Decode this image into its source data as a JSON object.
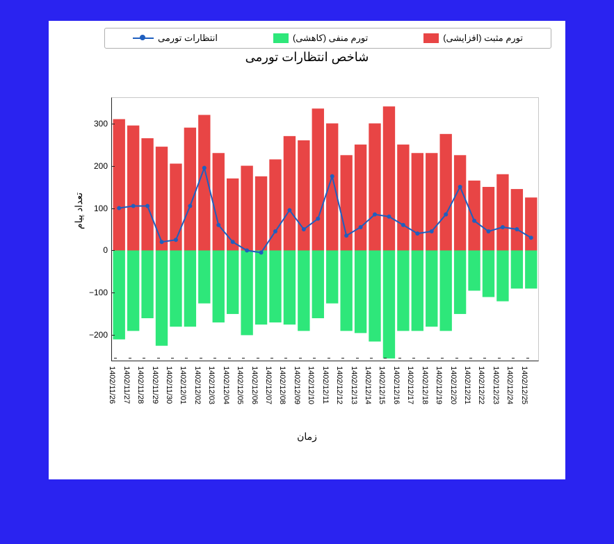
{
  "chart": {
    "type": "bar+line",
    "title": "شاخص انتظارات تورمی",
    "xlabel": "زمان",
    "ylabel": "تعداد پیام",
    "background_color": "#ffffff",
    "page_background": "#2a23f0",
    "axis_color": "#222222",
    "tick_fontsize": 12,
    "label_fontsize": 14,
    "title_fontsize": 18,
    "ylim": [
      -260,
      360
    ],
    "yticks": [
      -200,
      -100,
      0,
      100,
      200,
      300
    ],
    "bar_width": 0.85,
    "legend": {
      "items": [
        {
          "label": "تورم مثبت (افزایشی)",
          "kind": "swatch",
          "color": "#e84545"
        },
        {
          "label": "تورم منفی (کاهشی)",
          "kind": "swatch",
          "color": "#2ee77a"
        },
        {
          "label": "انتظارات تورمی",
          "kind": "line",
          "color": "#1f5fbf"
        }
      ]
    },
    "line_color": "#1f5fbf",
    "line_width": 2,
    "marker_size": 6,
    "pos_color": "#e84545",
    "neg_color": "#2ee77a",
    "categories": [
      "1402/11/26",
      "1402/11/27",
      "1402/11/28",
      "1402/11/29",
      "1402/11/30",
      "1402/12/01",
      "1402/12/02",
      "1402/12/03",
      "1402/12/04",
      "1402/12/05",
      "1402/12/06",
      "1402/12/07",
      "1402/12/08",
      "1402/12/09",
      "1402/12/10",
      "1402/12/11",
      "1402/12/12",
      "1402/12/13",
      "1402/12/14",
      "1402/12/15",
      "1402/12/16",
      "1402/12/17",
      "1402/12/18",
      "1402/12/19",
      "1402/12/20",
      "1402/12/21",
      "1402/12/22",
      "1402/12/23",
      "1402/12/24",
      "1402/12/25"
    ],
    "pos_values": [
      310,
      295,
      265,
      245,
      205,
      290,
      320,
      230,
      170,
      200,
      175,
      215,
      270,
      260,
      335,
      300,
      225,
      250,
      300,
      340,
      250,
      230,
      230,
      275,
      225,
      165,
      150,
      180,
      145,
      125
    ],
    "neg_values": [
      -210,
      -190,
      -160,
      -225,
      -180,
      -180,
      -125,
      -170,
      -150,
      -200,
      -175,
      -170,
      -175,
      -190,
      -160,
      -125,
      -190,
      -195,
      -215,
      -255,
      -190,
      -190,
      -180,
      -190,
      -150,
      -95,
      -110,
      -120,
      -90,
      -90
    ],
    "line_values": [
      100,
      105,
      105,
      20,
      25,
      105,
      195,
      60,
      20,
      0,
      -5,
      45,
      95,
      50,
      75,
      175,
      35,
      55,
      85,
      80,
      60,
      40,
      45,
      85,
      150,
      70,
      45,
      55,
      50,
      30
    ]
  }
}
